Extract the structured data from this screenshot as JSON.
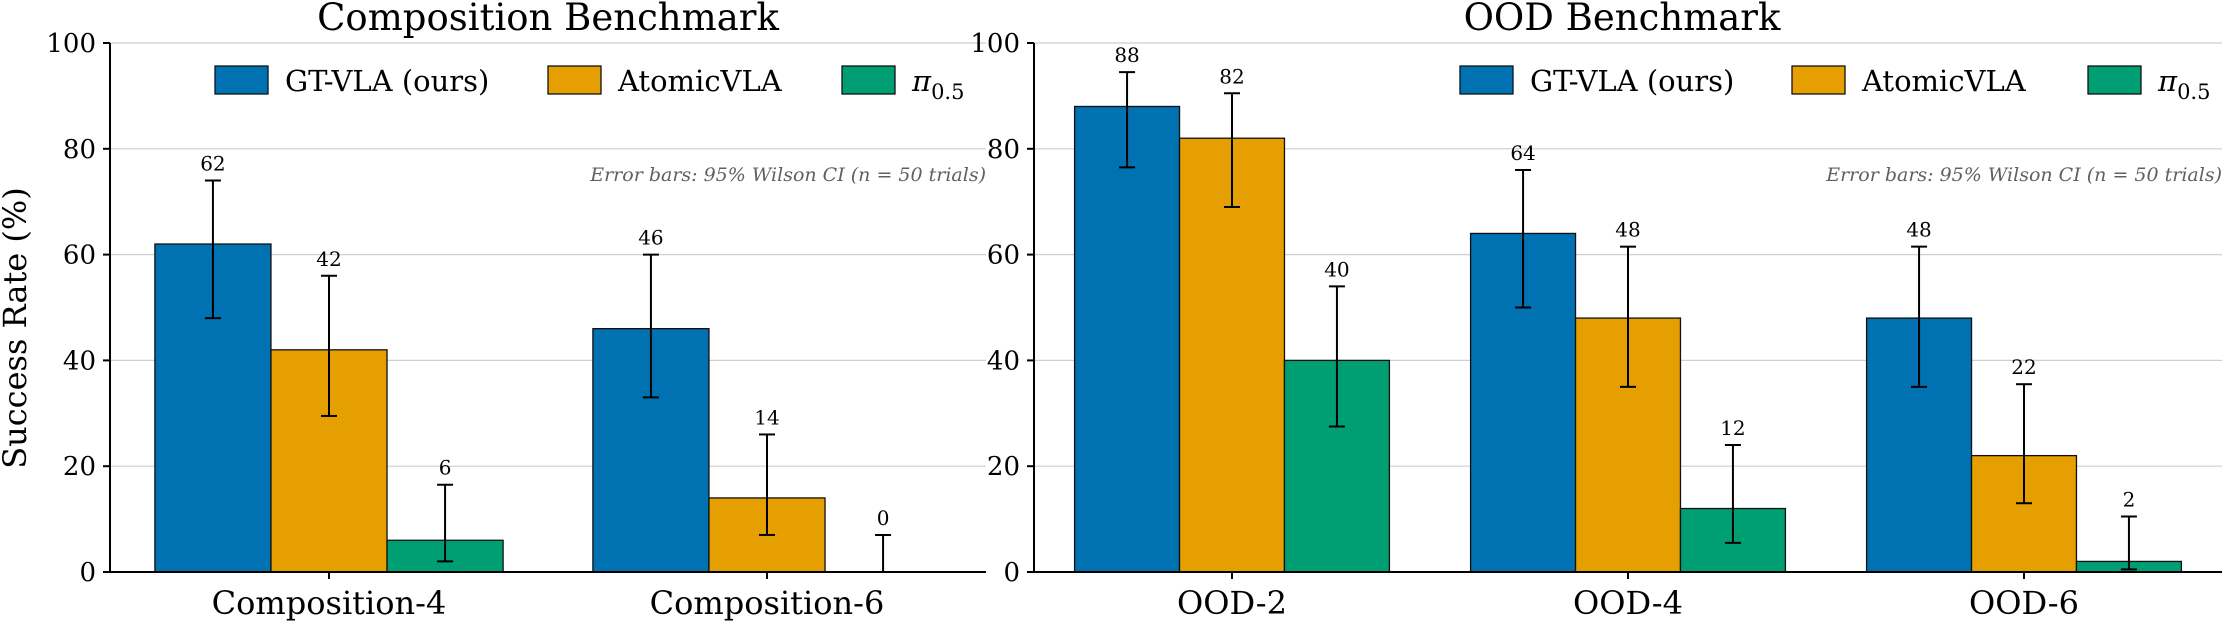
{
  "chart_data": [
    {
      "type": "bar",
      "title": "Composition Benchmark",
      "ylabel": "Success Rate (%)",
      "xlabel": "",
      "ylim": [
        0,
        100
      ],
      "yticks": [
        0,
        20,
        40,
        60,
        80,
        100
      ],
      "grid": true,
      "legend_position": "top",
      "note": "Error bars: 95% Wilson CI  (n = 50 trials)",
      "categories": [
        "Composition-4",
        "Composition-6"
      ],
      "series": [
        {
          "name": "GT-VLA (ours)",
          "color": "#0072b2",
          "values": [
            62,
            46
          ],
          "ci": [
            [
              48,
              74
            ],
            [
              33,
              60
            ]
          ]
        },
        {
          "name": "AtomicVLA",
          "color": "#e69f00",
          "values": [
            42,
            14
          ],
          "ci": [
            [
              29.5,
              56
            ],
            [
              7,
              26
            ]
          ]
        },
        {
          "name": "π0.5",
          "name_base": "π",
          "name_sub": "0.5",
          "color": "#009e73",
          "values": [
            6,
            0
          ],
          "ci": [
            [
              2,
              16.5
            ],
            [
              0,
              7
            ]
          ]
        }
      ]
    },
    {
      "type": "bar",
      "title": "OOD Benchmark",
      "ylabel": "",
      "xlabel": "",
      "ylim": [
        0,
        100
      ],
      "yticks": [
        0,
        20,
        40,
        60,
        80,
        100
      ],
      "grid": true,
      "legend_position": "top",
      "note": "Error bars: 95% Wilson CI  (n = 50 trials)",
      "categories": [
        "OOD-2",
        "OOD-4",
        "OOD-6"
      ],
      "series": [
        {
          "name": "GT-VLA (ours)",
          "color": "#0072b2",
          "values": [
            88,
            64,
            48
          ],
          "ci": [
            [
              76.5,
              94.5
            ],
            [
              50,
              76
            ],
            [
              35,
              61.5
            ]
          ]
        },
        {
          "name": "AtomicVLA",
          "color": "#e69f00",
          "values": [
            82,
            48,
            22
          ],
          "ci": [
            [
              69,
              90.5
            ],
            [
              35,
              61.5
            ],
            [
              13,
              35.5
            ]
          ]
        },
        {
          "name": "π0.5",
          "name_base": "π",
          "name_sub": "0.5",
          "color": "#009e73",
          "values": [
            40,
            12,
            2
          ],
          "ci": [
            [
              27.5,
              54
            ],
            [
              5.5,
              24
            ],
            [
              0.5,
              10.5
            ]
          ]
        }
      ]
    }
  ]
}
